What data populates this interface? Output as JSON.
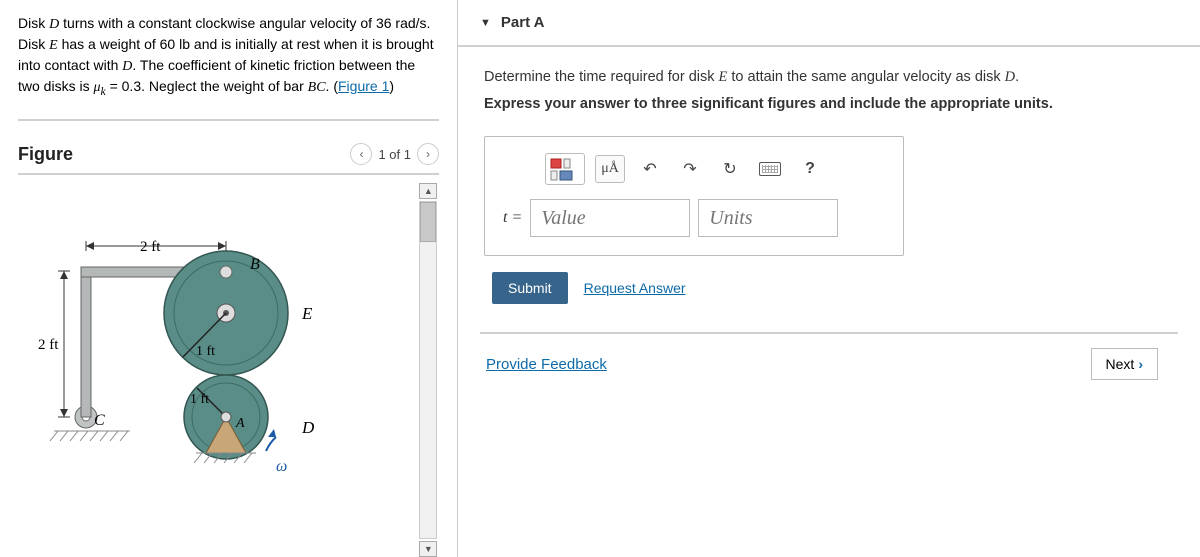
{
  "problem": {
    "html": "Disk <span class='var'>D</span> turns with a constant clockwise angular velocity of 36 <span class='unit'>rad/s</span>. Disk <span class='var'>E</span> has a weight of 60 <span class='unit'>lb</span> and is initially at rest when it is brought into contact with <span class='var'>D</span>. The coefficient of kinetic friction between the two disks is <span class='var'>μ<sub>k</sub></span> = 0.3. Neglect the weight of bar <span class='var'>BC</span>. (<a data-name='figure-link' data-interactable='true'>Figure 1</a>)"
  },
  "figure": {
    "title": "Figure",
    "counter": "1 of 1",
    "dims": {
      "bar_h": "2 ft",
      "bar_w": "2 ft",
      "rE": "1 ft",
      "rD": "1 ft"
    },
    "labels": {
      "B": "B",
      "C": "C",
      "D": "D",
      "E": "E",
      "A": "A",
      "omega": "ω"
    },
    "colors": {
      "diskE": "#5a8d87",
      "diskD": "#5a8d87",
      "bar": "#9aa0a0",
      "support": "#c8a678",
      "ground": "#a0a0a0"
    }
  },
  "part": {
    "title": "Part A",
    "instr": "Determine the time required for disk <span class='var'>E</span> to attain the same angular velocity as disk <span class='var'>D</span>.",
    "instr2": "Express your answer to three significant figures and include the appropriate units.",
    "var": "t =",
    "value_ph": "Value",
    "units_ph": "Units",
    "mu_label": "μÅ"
  },
  "actions": {
    "submit": "Submit",
    "request": "Request Answer",
    "feedback": "Provide Feedback",
    "next": "Next"
  }
}
